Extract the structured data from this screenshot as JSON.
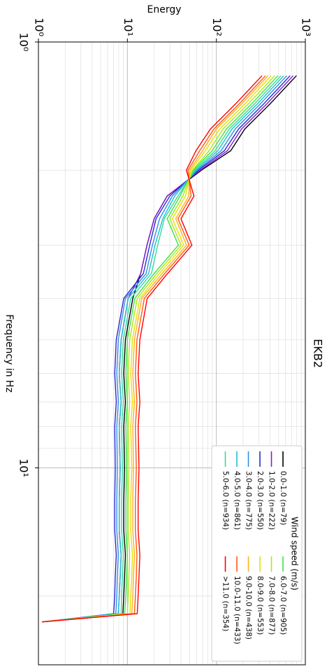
{
  "chart_data": {
    "type": "line",
    "title": "EKB2",
    "xlabel": "Frequency in Hz",
    "ylabel": "Energy",
    "x": [
      1.2,
      1.4,
      1.6,
      1.8,
      2.0,
      2.3,
      2.6,
      3.0,
      3.5,
      4,
      5,
      6,
      7,
      8,
      10,
      12,
      14,
      16,
      18,
      20,
      22,
      23
    ],
    "xlim": [
      1,
      29
    ],
    "xticks": [
      {
        "value": 1,
        "label": "10⁰"
      },
      {
        "value": 10,
        "label": "10¹"
      }
    ],
    "ylim": [
      1,
      1000
    ],
    "yticks": [
      {
        "value": 1,
        "label": "10⁰"
      },
      {
        "value": 10,
        "label": "10¹"
      },
      {
        "value": 100,
        "label": "10²"
      },
      {
        "value": 1000,
        "label": "10³"
      }
    ],
    "xscale": "log",
    "yscale": "log",
    "grid": true,
    "minor_grid": true,
    "legend_title": "Wind speed (m/s)",
    "legend": "upper right",
    "legend_columns": 2,
    "series": [
      {
        "name": "0.0-1.0 (n=79)",
        "color": "#000000",
        "values": [
          794,
          398,
          209,
          145,
          68,
          28,
          20,
          16.6,
          14.1,
          11.5,
          9.5,
          9.1,
          9.5,
          9.1,
          9.3,
          9.1,
          9.1,
          9.5,
          9.3,
          9.1,
          8.9,
          1.1
        ]
      },
      {
        "name": "1.0-2.0 (n=222)",
        "color": "#8a1ad8",
        "values": [
          730,
          366,
          192,
          133,
          66,
          28,
          20,
          16.6,
          14.1,
          10.2,
          8.5,
          8.1,
          8.5,
          8.1,
          8.3,
          8.1,
          8.1,
          8.5,
          8.3,
          8.1,
          7.9,
          1.1
        ]
      },
      {
        "name": "2.0-3.0 (n=550)",
        "color": "#2a2ad0",
        "values": [
          675,
          338,
          178,
          123,
          63,
          30,
          21,
          17.8,
          15.1,
          9.1,
          7.5,
          7.2,
          7.5,
          7.2,
          7.3,
          7.2,
          7.2,
          7.5,
          7.3,
          7.2,
          7.0,
          1.1
        ]
      },
      {
        "name": "3.0-4.0 (n=775)",
        "color": "#2f8fe8",
        "values": [
          619,
          310,
          163,
          113,
          61,
          32,
          23,
          19.1,
          16.2,
          9.5,
          7.9,
          7.6,
          7.9,
          7.6,
          7.7,
          7.6,
          7.6,
          7.9,
          7.7,
          7.6,
          7.4,
          1.1
        ]
      },
      {
        "name": "4.0-5.0 (n=861)",
        "color": "#1fc0c8",
        "values": [
          572,
          287,
          150,
          104,
          59,
          34,
          25,
          20.4,
          17.3,
          10.2,
          8.5,
          8.1,
          8.5,
          8.1,
          8.3,
          8.1,
          8.1,
          8.5,
          8.3,
          8.1,
          7.9,
          1.1
        ]
      },
      {
        "name": "5.0-6.0 (n=934)",
        "color": "#38d8a0",
        "values": [
          532,
          267,
          140,
          97,
          57,
          37,
          26,
          21.9,
          18.6,
          10.9,
          9.0,
          8.6,
          9.0,
          8.6,
          8.8,
          8.6,
          8.6,
          9.0,
          8.8,
          8.6,
          8.5,
          1.1
        ]
      },
      {
        "name": "6.0-7.0 (n=905)",
        "color": "#3ee43e",
        "values": [
          492,
          247,
          130,
          90,
          55,
          39,
          28,
          37.4,
          19.9,
          12.1,
          10.0,
          9.6,
          10.0,
          9.6,
          9.8,
          9.6,
          9.6,
          10.0,
          9.8,
          9.6,
          9.3,
          1.1
        ]
      },
      {
        "name": "7.0-8.0 (n=877)",
        "color": "#a8e820",
        "values": [
          453,
          227,
          119,
          83,
          54,
          42,
          30,
          40.1,
          21.3,
          12.9,
          10.6,
          10.2,
          10.6,
          10.2,
          10.4,
          10.2,
          10.2,
          10.6,
          10.4,
          10.2,
          10.0,
          1.1
        ]
      },
      {
        "name": "8.0-9.0 (n=553)",
        "color": "#e8e000",
        "values": [
          413,
          207,
          109,
          75,
          52,
          45,
          32,
          43.0,
          22.8,
          13.8,
          11.4,
          10.9,
          11.4,
          10.9,
          11.2,
          10.9,
          10.9,
          11.4,
          11.2,
          10.9,
          10.7,
          1.1
        ]
      },
      {
        "name": "9.0-10.0 (n=438)",
        "color": "#ffb020",
        "values": [
          381,
          191,
          100,
          70,
          50,
          49,
          35,
          46.2,
          24.5,
          14.5,
          12.0,
          11.5,
          12.0,
          11.5,
          11.7,
          11.5,
          11.5,
          12.0,
          11.7,
          11.5,
          11.2,
          1.1
        ]
      },
      {
        "name": "10.0-11.0 (n=433)",
        "color": "#ff5a10",
        "values": [
          357,
          179,
          94,
          65,
          48,
          52,
          37,
          49.4,
          26.2,
          15.5,
          12.8,
          12.3,
          12.8,
          12.3,
          12.6,
          12.3,
          12.3,
          12.8,
          12.6,
          12.3,
          12.0,
          1.1
        ]
      },
      {
        "name": ">11.0 (n=354)",
        "color": "#ff0000",
        "values": [
          326,
          163,
          86,
          59,
          46,
          56,
          40,
          53.1,
          28.2,
          16.7,
          13.8,
          13.2,
          13.8,
          13.2,
          13.5,
          13.2,
          13.2,
          13.8,
          13.5,
          13.2,
          12.9,
          1.1
        ]
      }
    ]
  }
}
